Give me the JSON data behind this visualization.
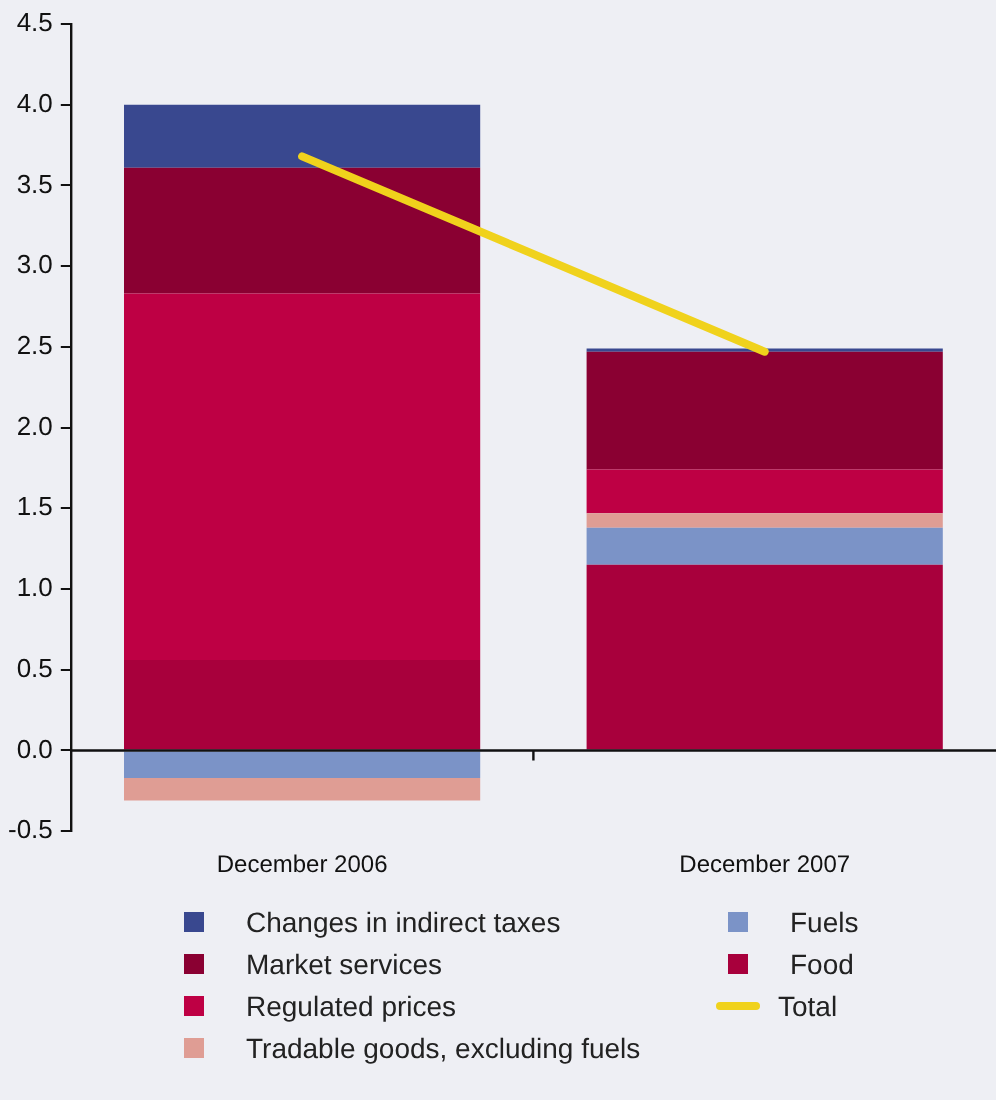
{
  "chart_data": {
    "type": "bar",
    "stacked": true,
    "categories": [
      "December 2006",
      "December 2007"
    ],
    "series": [
      {
        "name": "Food",
        "color": "#a8003c",
        "values": [
          0.56,
          1.15
        ]
      },
      {
        "name": "Fuels",
        "color": "#7b93c7",
        "values": [
          -0.17,
          0.23
        ]
      },
      {
        "name": "Tradable goods, excluding fuels",
        "color": "#df9d94",
        "values": [
          -0.14,
          0.09
        ]
      },
      {
        "name": "Regulated prices",
        "color": "#be0044",
        "values": [
          2.27,
          0.27
        ]
      },
      {
        "name": "Market services",
        "color": "#8a0032",
        "values": [
          0.78,
          0.73
        ]
      },
      {
        "name": "Changes in indirect taxes",
        "color": "#39488f",
        "values": [
          0.39,
          0.02
        ]
      },
      {
        "name": "Total",
        "type": "line",
        "color": "#f0d21c",
        "values": [
          3.68,
          2.47
        ]
      }
    ],
    "ylim": [
      -0.5,
      4.5
    ],
    "yticks": [
      {
        "value": -0.5,
        "label": "-0.5"
      },
      {
        "value": 0,
        "label": "0.0"
      },
      {
        "value": 0.5,
        "label": "0.5"
      },
      {
        "value": 1,
        "label": "1.0"
      },
      {
        "value": 1.5,
        "label": "1.5"
      },
      {
        "value": 2,
        "label": "2.0"
      },
      {
        "value": 2.5,
        "label": "2.5"
      },
      {
        "value": 3,
        "label": "3.0"
      },
      {
        "value": 3.5,
        "label": "3.5"
      },
      {
        "value": 4,
        "label": "4.0"
      },
      {
        "value": 4.5,
        "label": "4.5"
      }
    ],
    "legend": "bottom"
  }
}
